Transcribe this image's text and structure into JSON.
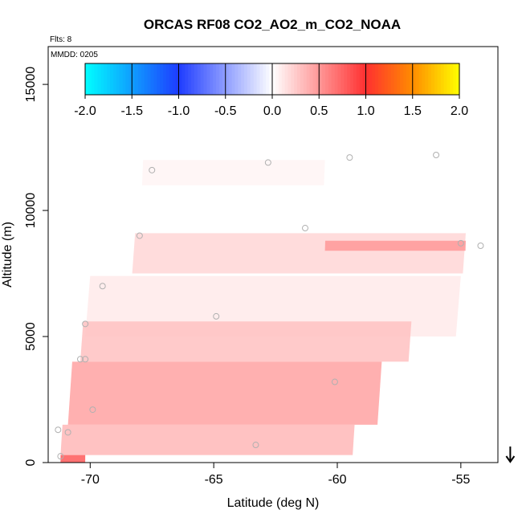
{
  "chart_data": {
    "type": "heatmap",
    "title": "ORCAS RF08 CO2_AO2_m_CO2_NOAA",
    "xlabel": "Latitude (deg N)",
    "ylabel": "Altitude (m)",
    "xlim": [
      -71.7,
      -53.5
    ],
    "ylim": [
      0,
      16500
    ],
    "xticks": [
      -70,
      -65,
      -60,
      -55
    ],
    "xtick_labels": [
      "-70",
      "-65",
      "-60",
      "-55"
    ],
    "yticks": [
      0,
      5000,
      10000,
      15000
    ],
    "ytick_labels": [
      "0",
      "5000",
      "10000",
      "15000"
    ],
    "flights_note": "Flts: 8",
    "date_note": "MMDD: 0205",
    "colorbar": {
      "ticks": [
        -2.0,
        -1.5,
        -1.0,
        -0.5,
        0.0,
        0.5,
        1.0,
        1.5,
        2.0
      ],
      "tick_labels": [
        "-2.0",
        "-1.5",
        "-1.0",
        "-0.5",
        "0.0",
        "0.5",
        "1.0",
        "1.5",
        "2.0"
      ],
      "colors": {
        "cyan": "#00ffff",
        "blue": "#1e3cff",
        "white": "#ffffff",
        "red": "#ff3030",
        "orange": "#ff8c00",
        "yellow": "#ffff00"
      }
    },
    "curtain_layers": [
      {
        "alt_min": 11000,
        "alt_max": 12000,
        "lat_min": -67.9,
        "lat_max": -60.5,
        "value": 0.05
      },
      {
        "alt_min": 7500,
        "alt_max": 9100,
        "lat_min": -68.3,
        "lat_max": -54.8,
        "value": 0.2
      },
      {
        "alt_min": 8400,
        "alt_max": 8800,
        "lat_min": -60.5,
        "lat_max": -54.8,
        "value": 0.5
      },
      {
        "alt_min": 5000,
        "alt_max": 7400,
        "lat_min": -70.2,
        "lat_max": -55.0,
        "value": 0.1
      },
      {
        "alt_min": 4000,
        "alt_max": 5600,
        "lat_min": -70.4,
        "lat_max": -57.0,
        "value": 0.3
      },
      {
        "alt_min": 1500,
        "alt_max": 4000,
        "lat_min": -70.9,
        "lat_max": -58.2,
        "value": 0.45
      },
      {
        "alt_min": 300,
        "alt_max": 1500,
        "lat_min": -71.2,
        "lat_max": -59.3,
        "value": 0.35
      },
      {
        "alt_min": 0,
        "alt_max": 300,
        "lat_min": -71.2,
        "lat_max": -70.2,
        "value": 0.8
      }
    ],
    "flask_samples": [
      {
        "lat": -67.5,
        "alt": 11600
      },
      {
        "lat": -62.8,
        "alt": 11900
      },
      {
        "lat": -59.5,
        "alt": 12100
      },
      {
        "lat": -56.0,
        "alt": 12200
      },
      {
        "lat": -68.0,
        "alt": 9000
      },
      {
        "lat": -61.3,
        "alt": 9300
      },
      {
        "lat": -54.2,
        "alt": 8600
      },
      {
        "lat": -55.0,
        "alt": 8700
      },
      {
        "lat": -69.5,
        "alt": 7000
      },
      {
        "lat": -70.2,
        "alt": 5500
      },
      {
        "lat": -64.9,
        "alt": 5800
      },
      {
        "lat": -70.4,
        "alt": 4100
      },
      {
        "lat": -70.2,
        "alt": 4100
      },
      {
        "lat": -60.1,
        "alt": 3200
      },
      {
        "lat": -69.9,
        "alt": 2100
      },
      {
        "lat": -70.9,
        "alt": 1200
      },
      {
        "lat": -71.3,
        "alt": 1300
      },
      {
        "lat": -71.2,
        "alt": 250
      },
      {
        "lat": -63.3,
        "alt": 700
      }
    ],
    "arrow_marker": {
      "lat": -53.0,
      "direction": "down"
    }
  }
}
